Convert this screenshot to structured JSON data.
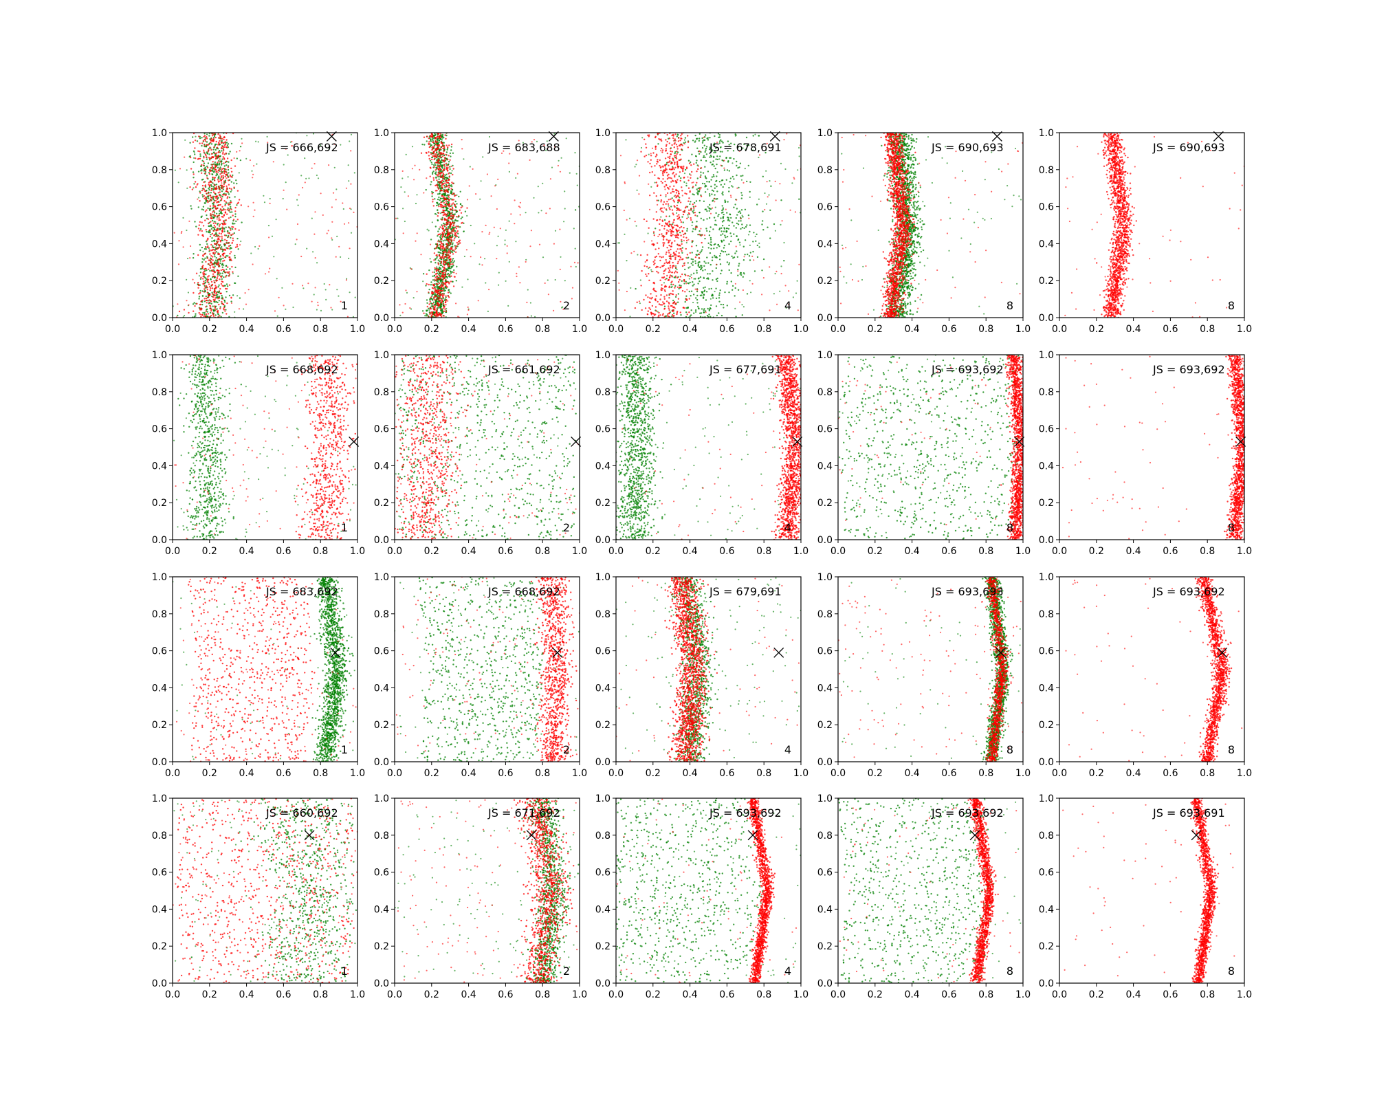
{
  "figure": {
    "rows": 4,
    "cols": 5,
    "xlim": [
      0,
      1
    ],
    "ylim": [
      0,
      1
    ],
    "xticks": [
      "0.0",
      "0.2",
      "0.4",
      "0.6",
      "0.8",
      "1.0"
    ],
    "yticks": [
      "0.0",
      "0.2",
      "0.4",
      "0.6",
      "0.8",
      "1.0"
    ],
    "colors": {
      "red": "#ff0000",
      "green": "#008000",
      "marker": "#000000"
    }
  },
  "chart_data": [
    {
      "type": "scatter",
      "row": 0,
      "col": 0,
      "annotation": "JS = 666,692",
      "corner_label": "1",
      "marker": [
        0.86,
        0.98
      ],
      "red": {
        "curve": [
          [
            0.0,
            0.2
          ],
          [
            0.5,
            0.25
          ],
          [
            1.0,
            0.22
          ]
        ],
        "spread": 0.05,
        "density": "diffuse"
      },
      "green": {
        "curve": [
          [
            0.0,
            0.2
          ],
          [
            0.5,
            0.25
          ],
          [
            1.0,
            0.22
          ]
        ],
        "spread": 0.05,
        "density": "diffuse"
      }
    },
    {
      "type": "scatter",
      "row": 0,
      "col": 1,
      "annotation": "JS = 683,688",
      "corner_label": "2",
      "marker": [
        0.86,
        0.98
      ],
      "red": {
        "curve": [
          [
            0.0,
            0.22
          ],
          [
            0.5,
            0.3
          ],
          [
            1.0,
            0.22
          ]
        ],
        "spread": 0.03,
        "density": "diffuse"
      },
      "green": {
        "curve": [
          [
            0.0,
            0.22
          ],
          [
            0.5,
            0.3
          ],
          [
            1.0,
            0.22
          ]
        ],
        "spread": 0.03,
        "density": "medium"
      }
    },
    {
      "type": "scatter",
      "row": 0,
      "col": 2,
      "annotation": "JS = 678,691",
      "corner_label": "4",
      "marker": [
        0.86,
        0.98
      ],
      "red": {
        "curve": [
          [
            0.0,
            0.25
          ],
          [
            0.5,
            0.32
          ],
          [
            1.0,
            0.28
          ]
        ],
        "spread": 0.06,
        "density": "diffuse"
      },
      "green": {
        "curve": [
          [
            0.0,
            0.45
          ],
          [
            0.5,
            0.55
          ],
          [
            1.0,
            0.5
          ]
        ],
        "spread": 0.12,
        "density": "diffuse"
      }
    },
    {
      "type": "scatter",
      "row": 0,
      "col": 3,
      "annotation": "JS = 690,693",
      "corner_label": "8",
      "marker": [
        0.86,
        0.98
      ],
      "red": {
        "curve": [
          [
            0.0,
            0.28
          ],
          [
            0.5,
            0.35
          ],
          [
            1.0,
            0.3
          ]
        ],
        "spread": 0.025,
        "density": "dense"
      },
      "green": {
        "curve": [
          [
            0.0,
            0.32
          ],
          [
            0.5,
            0.38
          ],
          [
            1.0,
            0.33
          ]
        ],
        "spread": 0.035,
        "density": "dense"
      }
    },
    {
      "type": "scatter",
      "row": 0,
      "col": 4,
      "annotation": "JS = 690,693",
      "corner_label": "8",
      "marker": [
        0.86,
        0.98
      ],
      "red": {
        "curve": [
          [
            0.0,
            0.28
          ],
          [
            0.5,
            0.35
          ],
          [
            1.0,
            0.28
          ]
        ],
        "spread": 0.025,
        "density": "dense"
      },
      "green": null
    },
    {
      "type": "scatter",
      "row": 1,
      "col": 0,
      "annotation": "JS = 668,692",
      "corner_label": "1",
      "marker": [
        0.98,
        0.53
      ],
      "red": {
        "curve": [
          [
            0.0,
            0.82
          ],
          [
            0.5,
            0.86
          ],
          [
            1.0,
            0.83
          ]
        ],
        "spread": 0.06,
        "density": "diffuse"
      },
      "green": {
        "curve": [
          [
            0.0,
            0.18
          ],
          [
            0.5,
            0.2
          ],
          [
            1.0,
            0.17
          ]
        ],
        "spread": 0.05,
        "density": "diffuse"
      }
    },
    {
      "type": "scatter",
      "row": 1,
      "col": 1,
      "annotation": "JS = 661,692",
      "corner_label": "2",
      "marker": [
        0.98,
        0.53
      ],
      "red": {
        "curve": [
          [
            0.0,
            0.15
          ],
          [
            0.5,
            0.2
          ],
          [
            1.0,
            0.18
          ]
        ],
        "spread": 0.08,
        "density": "diffuse"
      },
      "green": {
        "curve": [
          [
            0.0,
            0.5
          ],
          [
            0.5,
            0.5
          ],
          [
            1.0,
            0.5
          ]
        ],
        "spread": 0.3,
        "density": "diffuse"
      }
    },
    {
      "type": "scatter",
      "row": 1,
      "col": 2,
      "annotation": "JS = 677,691",
      "corner_label": "4",
      "marker": [
        0.98,
        0.53
      ],
      "red": {
        "curve": [
          [
            0.0,
            0.93
          ],
          [
            0.5,
            0.97
          ],
          [
            1.0,
            0.92
          ]
        ],
        "spread": 0.03,
        "density": "dense"
      },
      "green": {
        "curve": [
          [
            0.0,
            0.1
          ],
          [
            0.5,
            0.12
          ],
          [
            1.0,
            0.1
          ]
        ],
        "spread": 0.05,
        "density": "medium"
      }
    },
    {
      "type": "scatter",
      "row": 1,
      "col": 3,
      "annotation": "JS = 693,692",
      "corner_label": "8",
      "marker": [
        0.98,
        0.53
      ],
      "red": {
        "curve": [
          [
            0.0,
            0.96
          ],
          [
            0.5,
            0.99
          ],
          [
            1.0,
            0.95
          ]
        ],
        "spread": 0.02,
        "density": "dense"
      },
      "green": {
        "curve": [
          [
            0.0,
            0.5
          ],
          [
            0.5,
            0.5
          ],
          [
            1.0,
            0.5
          ]
        ],
        "spread": 0.3,
        "density": "diffuse"
      }
    },
    {
      "type": "scatter",
      "row": 1,
      "col": 4,
      "annotation": "JS = 693,692",
      "corner_label": "8",
      "marker": [
        0.98,
        0.53
      ],
      "red": {
        "curve": [
          [
            0.0,
            0.95
          ],
          [
            0.5,
            0.99
          ],
          [
            1.0,
            0.95
          ]
        ],
        "spread": 0.02,
        "density": "dense"
      },
      "green": null
    },
    {
      "type": "scatter",
      "row": 2,
      "col": 0,
      "annotation": "JS = 683,692",
      "corner_label": "1",
      "marker": [
        0.88,
        0.59
      ],
      "red": {
        "curve": [
          [
            0.0,
            0.4
          ],
          [
            0.5,
            0.45
          ],
          [
            1.0,
            0.4
          ]
        ],
        "spread": 0.2,
        "density": "diffuse"
      },
      "green": {
        "curve": [
          [
            0.0,
            0.83
          ],
          [
            0.5,
            0.89
          ],
          [
            1.0,
            0.83
          ]
        ],
        "spread": 0.03,
        "density": "dense"
      }
    },
    {
      "type": "scatter",
      "row": 2,
      "col": 1,
      "annotation": "JS = 668,692",
      "corner_label": "2",
      "marker": [
        0.88,
        0.59
      ],
      "red": {
        "curve": [
          [
            0.0,
            0.85
          ],
          [
            0.5,
            0.88
          ],
          [
            1.0,
            0.85
          ]
        ],
        "spread": 0.04,
        "density": "medium"
      },
      "green": {
        "curve": [
          [
            0.0,
            0.45
          ],
          [
            0.5,
            0.5
          ],
          [
            1.0,
            0.45
          ]
        ],
        "spread": 0.2,
        "density": "diffuse"
      }
    },
    {
      "type": "scatter",
      "row": 2,
      "col": 2,
      "annotation": "JS = 679,691",
      "corner_label": "4",
      "marker": [
        0.88,
        0.59
      ],
      "red": {
        "curve": [
          [
            0.0,
            0.38
          ],
          [
            0.5,
            0.42
          ],
          [
            1.0,
            0.36
          ]
        ],
        "spread": 0.04,
        "density": "dense"
      },
      "green": {
        "curve": [
          [
            0.0,
            0.4
          ],
          [
            0.5,
            0.45
          ],
          [
            1.0,
            0.38
          ]
        ],
        "spread": 0.04,
        "density": "medium"
      }
    },
    {
      "type": "scatter",
      "row": 2,
      "col": 3,
      "annotation": "JS = 693,693",
      "corner_label": "8",
      "marker": [
        0.88,
        0.59
      ],
      "red": {
        "curve": [
          [
            0.0,
            0.83
          ],
          [
            0.5,
            0.89
          ],
          [
            1.0,
            0.83
          ]
        ],
        "spread": 0.015,
        "density": "medium"
      },
      "green": {
        "curve": [
          [
            0.0,
            0.83
          ],
          [
            0.5,
            0.89
          ],
          [
            1.0,
            0.83
          ]
        ],
        "spread": 0.02,
        "density": "dense"
      }
    },
    {
      "type": "scatter",
      "row": 2,
      "col": 4,
      "annotation": "JS = 693,692",
      "corner_label": "8",
      "marker": [
        0.88,
        0.59
      ],
      "red": {
        "curve": [
          [
            0.0,
            0.8
          ],
          [
            0.5,
            0.88
          ],
          [
            1.0,
            0.78
          ]
        ],
        "spread": 0.02,
        "density": "dense"
      },
      "green": null
    },
    {
      "type": "scatter",
      "row": 3,
      "col": 0,
      "annotation": "JS = 660,692",
      "corner_label": "1",
      "marker": [
        0.74,
        0.8
      ],
      "red": {
        "curve": [
          [
            0.0,
            0.5
          ],
          [
            0.5,
            0.5
          ],
          [
            1.0,
            0.5
          ]
        ],
        "spread": 0.3,
        "density": "diffuse"
      },
      "green": {
        "curve": [
          [
            0.0,
            0.7
          ],
          [
            0.5,
            0.75
          ],
          [
            1.0,
            0.7
          ]
        ],
        "spread": 0.12,
        "density": "diffuse"
      }
    },
    {
      "type": "scatter",
      "row": 3,
      "col": 1,
      "annotation": "JS = 671,692",
      "corner_label": "2",
      "marker": [
        0.74,
        0.8
      ],
      "red": {
        "curve": [
          [
            0.0,
            0.78
          ],
          [
            0.5,
            0.84
          ],
          [
            1.0,
            0.76
          ]
        ],
        "spread": 0.05,
        "density": "medium"
      },
      "green": {
        "curve": [
          [
            0.0,
            0.8
          ],
          [
            0.5,
            0.86
          ],
          [
            1.0,
            0.8
          ]
        ],
        "spread": 0.04,
        "density": "medium"
      }
    },
    {
      "type": "scatter",
      "row": 3,
      "col": 2,
      "annotation": "JS = 693,692",
      "corner_label": "4",
      "marker": [
        0.74,
        0.8
      ],
      "red": {
        "curve": [
          [
            0.0,
            0.75
          ],
          [
            0.5,
            0.82
          ],
          [
            1.0,
            0.74
          ]
        ],
        "spread": 0.015,
        "density": "dense"
      },
      "green": {
        "curve": [
          [
            0.0,
            0.3
          ],
          [
            0.5,
            0.4
          ],
          [
            1.0,
            0.3
          ]
        ],
        "spread": 0.25,
        "density": "diffuse"
      }
    },
    {
      "type": "scatter",
      "row": 3,
      "col": 3,
      "annotation": "JS = 693,692",
      "corner_label": "8",
      "marker": [
        0.74,
        0.8
      ],
      "red": {
        "curve": [
          [
            0.0,
            0.75
          ],
          [
            0.5,
            0.82
          ],
          [
            1.0,
            0.74
          ]
        ],
        "spread": 0.015,
        "density": "dense"
      },
      "green": {
        "curve": [
          [
            0.0,
            0.4
          ],
          [
            0.5,
            0.45
          ],
          [
            1.0,
            0.4
          ]
        ],
        "spread": 0.25,
        "density": "diffuse"
      }
    },
    {
      "type": "scatter",
      "row": 3,
      "col": 4,
      "annotation": "JS = 693,691",
      "corner_label": "8",
      "marker": [
        0.74,
        0.8
      ],
      "red": {
        "curve": [
          [
            0.0,
            0.75
          ],
          [
            0.5,
            0.82
          ],
          [
            1.0,
            0.74
          ]
        ],
        "spread": 0.015,
        "density": "dense"
      },
      "green": null
    }
  ]
}
